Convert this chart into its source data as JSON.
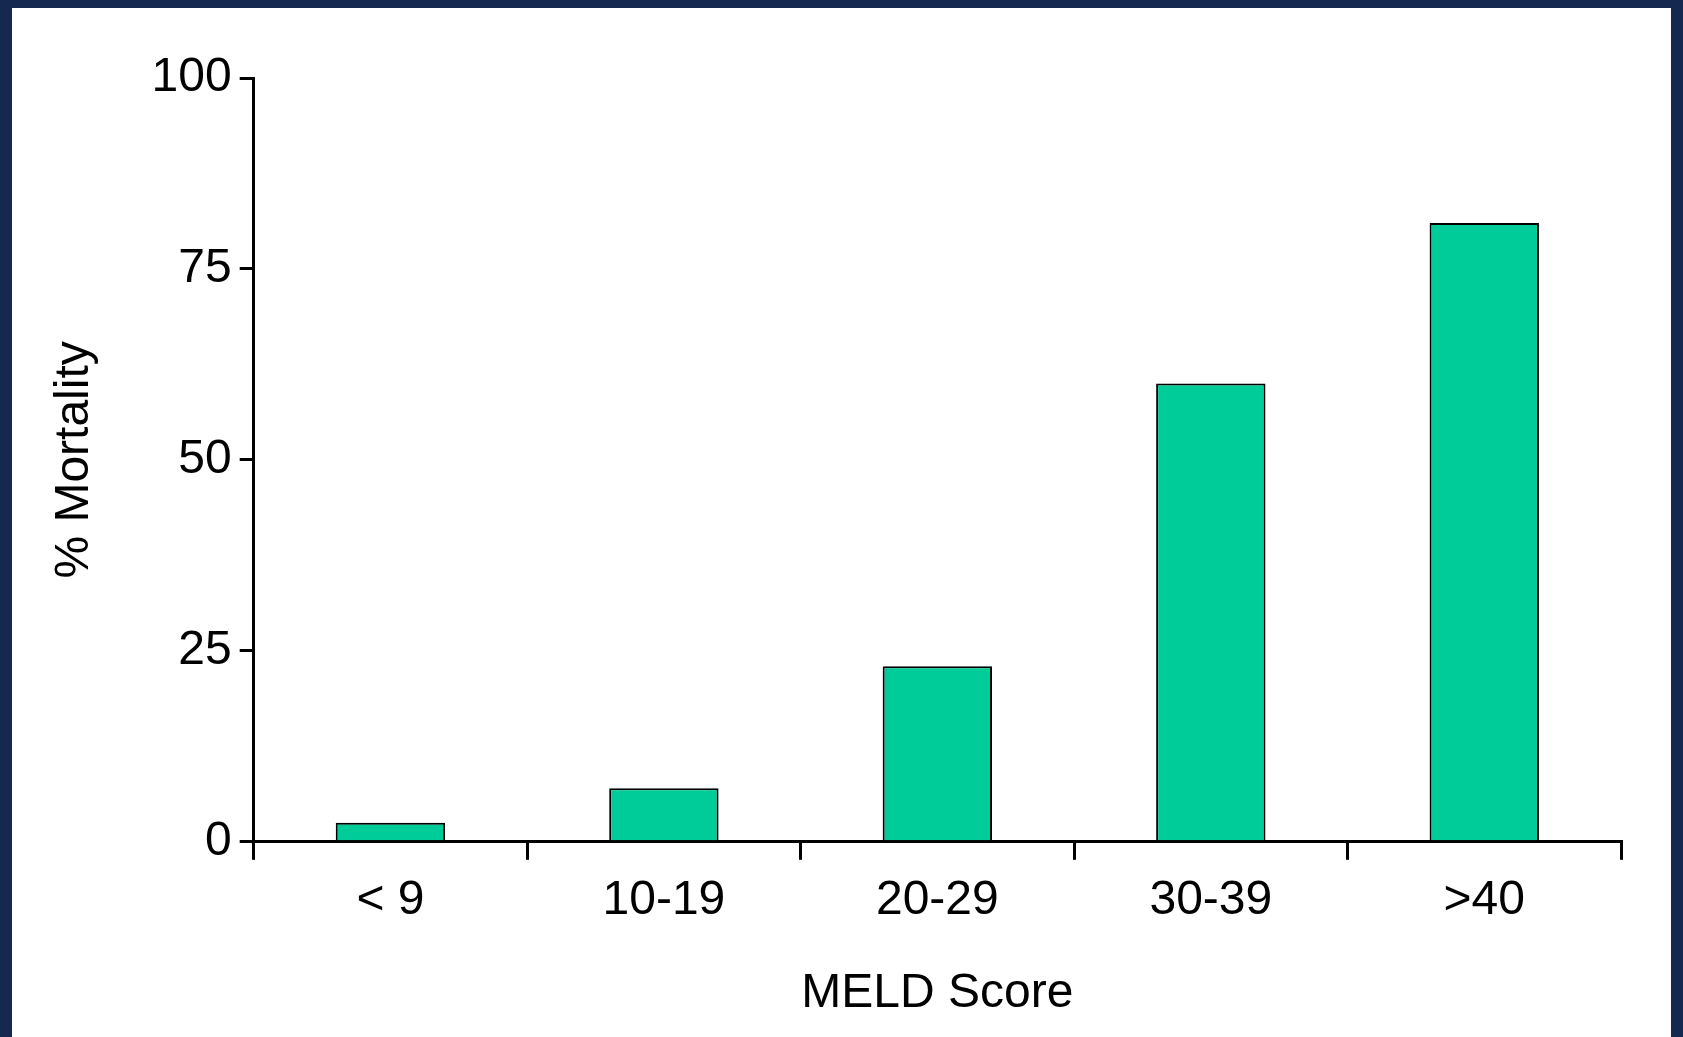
{
  "chart_data": {
    "type": "bar",
    "xlabel": "MELD Score",
    "ylabel": "% Mortality",
    "categories": [
      "< 9",
      "10-19",
      "20-29",
      "30-39",
      ">40"
    ],
    "values": [
      2.5,
      7,
      23,
      60,
      81
    ],
    "color": "#00cc99",
    "ylim": [
      0,
      100
    ],
    "yticks": [
      0,
      25,
      50,
      75,
      100
    ],
    "grid": false,
    "legend": false
  }
}
